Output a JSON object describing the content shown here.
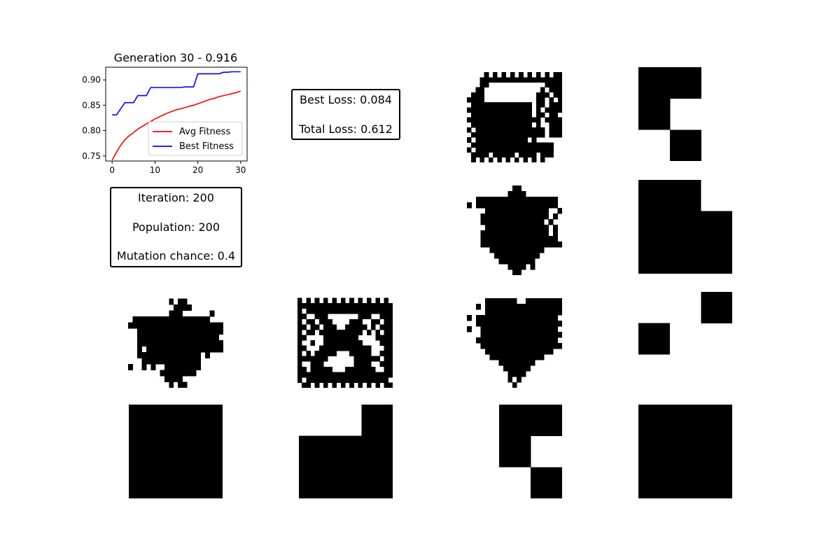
{
  "chart_data": {
    "type": "line",
    "title": "Generation 30 - 0.916",
    "xlabel": "",
    "ylabel": "",
    "xlim": [
      -1.5,
      31.5
    ],
    "ylim": [
      0.74,
      0.925
    ],
    "xticks": [
      "0",
      "10",
      "20",
      "30"
    ],
    "yticks": [
      "0.75",
      "0.80",
      "0.85",
      "0.90"
    ],
    "legend_position": "lower-right",
    "grid": false,
    "series": [
      {
        "name": "Avg Fitness",
        "color": "#ff0000",
        "x": [
          0,
          1,
          2,
          3,
          4,
          5,
          6,
          7,
          8,
          9,
          10,
          11,
          12,
          13,
          14,
          15,
          16,
          17,
          18,
          19,
          20,
          21,
          22,
          23,
          24,
          25,
          26,
          27,
          28,
          29,
          30
        ],
        "y": [
          0.742,
          0.757,
          0.771,
          0.782,
          0.79,
          0.796,
          0.803,
          0.808,
          0.813,
          0.818,
          0.823,
          0.827,
          0.831,
          0.835,
          0.838,
          0.841,
          0.843,
          0.845,
          0.848,
          0.85,
          0.853,
          0.856,
          0.859,
          0.862,
          0.864,
          0.867,
          0.869,
          0.871,
          0.873,
          0.875,
          0.878
        ]
      },
      {
        "name": "Best Fitness",
        "color": "#0000ff",
        "x": [
          0,
          1,
          2,
          3,
          4,
          5,
          6,
          7,
          8,
          9,
          10,
          11,
          12,
          13,
          14,
          15,
          16,
          17,
          18,
          19,
          20,
          21,
          22,
          23,
          24,
          25,
          26,
          27,
          28,
          29,
          30
        ],
        "y": [
          0.831,
          0.831,
          0.843,
          0.855,
          0.855,
          0.855,
          0.869,
          0.869,
          0.869,
          0.885,
          0.885,
          0.885,
          0.885,
          0.885,
          0.885,
          0.885,
          0.885,
          0.886,
          0.886,
          0.886,
          0.912,
          0.912,
          0.912,
          0.912,
          0.912,
          0.912,
          0.915,
          0.915,
          0.916,
          0.916,
          0.916
        ]
      }
    ]
  },
  "stats": {
    "iteration": "Iteration: 200",
    "population": "Population: 200",
    "mutation": "Mutation chance: 0.4"
  },
  "loss": {
    "best": "Best Loss: 0.084",
    "total": "Total Loss: 0.612"
  },
  "targets": [
    {
      "name": "target-1",
      "rows": [
        "11",
        "10",
        "01"
      ]
    },
    {
      "name": "target-2",
      "rows": [
        "110",
        "111",
        "111"
      ]
    },
    {
      "name": "target-3",
      "rows": [
        "001",
        "100",
        "000"
      ]
    },
    {
      "name": "target-4",
      "rows": [
        "00",
        "00",
        "00"
      ]
    },
    {
      "name": "target-5",
      "rows": [
        "001",
        "111",
        "111"
      ]
    },
    {
      "name": "target-6",
      "rows": [
        "11",
        "10",
        "01"
      ]
    },
    {
      "name": "target-7",
      "rows": [
        "11",
        "11",
        "11"
      ]
    }
  ],
  "patterns": [
    {
      "name": "evolved-pattern-top",
      "rows": [
        "0000000000000000000000",
        "0000101010101010101011",
        "0001111111111111111111",
        "0001100000000000001111",
        "0011000000000000010111",
        "0111000000000000111011",
        "1111000000000000110101",
        "0111111111111110110111",
        "1111111111111110101111",
        "0111111111111110110110",
        "1111111111111111101111",
        "0111111111111110100111",
        "1011111111111111110111",
        "0111111111111111110111",
        "1011111111111101000000",
        "0111111111111111111100",
        "1011111111111111111100",
        "0111101111101111011100",
        "0101010101010101010000"
      ]
    },
    {
      "name": "evolved-pattern-middle",
      "rows": [
        "000000000000000000000",
        "000000000011000000000",
        "000000000111100000000",
        "001111111111111111110",
        "101111111111111111110",
        "000011111111111111001",
        "000111111111111111010",
        "000111111111111110100",
        "000011111111111111010",
        "000111111111111111010",
        "000111111111111111110",
        "000111111111111111111",
        "000001111111111110000",
        "000000111111111100000",
        "000000011111111000000",
        "000000000111101000000",
        "000000000011000000000"
      ]
    },
    {
      "name": "evolved-pattern-arrow",
      "rows": [
        "000000000000000000000",
        "000000000101100000000",
        "000000000011110000000",
        "000000000111000000100",
        "011111111111111111000",
        "111111111111111111111",
        "001111111111111111111",
        "001111111111111111110",
        "001111111111111111111",
        "001011111111111111111",
        "001111111111111101000",
        "000111111111111100000",
        "100101001111111100000",
        "000000011111111000000",
        "000000001111000000000",
        "000000000101100000000"
      ]
    },
    {
      "name": "evolved-pattern-hourglass",
      "rows": [
        "0000000000000000000000",
        "1010101010101010101010",
        "1111111111111111111111",
        "1011111111111111111111",
        "1100111000000011100111",
        "1011011100001110011011",
        "1101101110011111010111",
        "1011011111111110101011",
        "1100001111111100001111",
        "1001001111111110000111",
        "1100011111111111100011",
        "1010111110001111100111",
        "1111111000000111111011",
        "1001110000000111100111",
        "1101111100011111110011",
        "1111111111111111111111",
        "1011111111111111111110",
        "0110101010101010101011"
      ]
    },
    {
      "name": "evolved-pattern-shield",
      "rows": [
        "000000000000000000000",
        "000011111110011111111",
        "001011111111111111111",
        "000011111111111111111",
        "101111111111111111110",
        "001111111111111111111",
        "100111111111111111110",
        "000111111111111111111",
        "001111111111111111110",
        "000111111111111111111",
        "000011111111111111100",
        "000001111111111110000",
        "000000011111111000000",
        "000000001111110000000",
        "000000000111100000000",
        "000000000101000000000",
        "000000000010000000000"
      ]
    }
  ]
}
